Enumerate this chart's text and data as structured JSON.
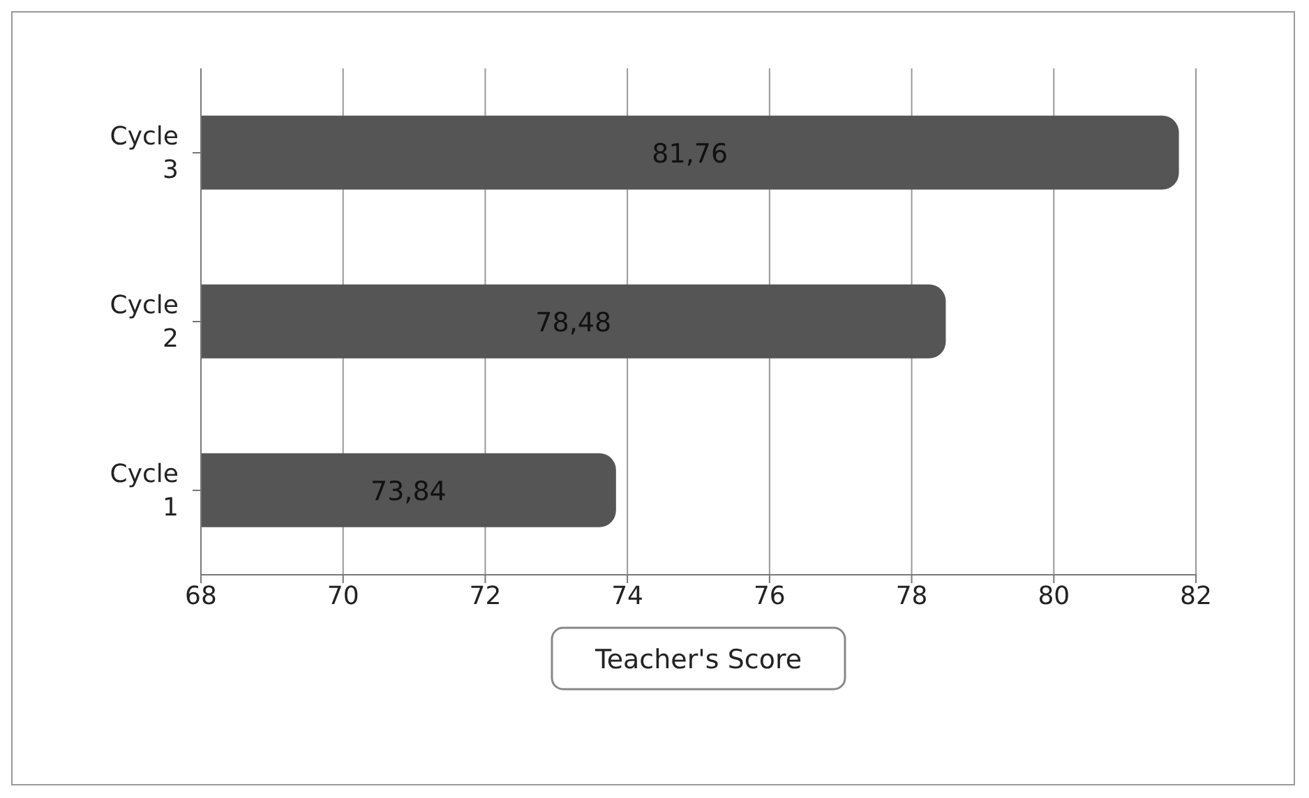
{
  "chart_data": {
    "type": "bar",
    "orientation": "horizontal",
    "categories": [
      "Cycle 3",
      "Cycle 2",
      "Cycle 1"
    ],
    "values": [
      81.76,
      78.48,
      73.84
    ],
    "value_labels": [
      "81,76",
      "78,48",
      "73,84"
    ],
    "color": "#555555",
    "xlim": [
      68,
      82
    ],
    "xticks": [
      68,
      70,
      72,
      74,
      76,
      78,
      80,
      82
    ],
    "xlabel": "Teacher's Score",
    "grid": "x"
  }
}
